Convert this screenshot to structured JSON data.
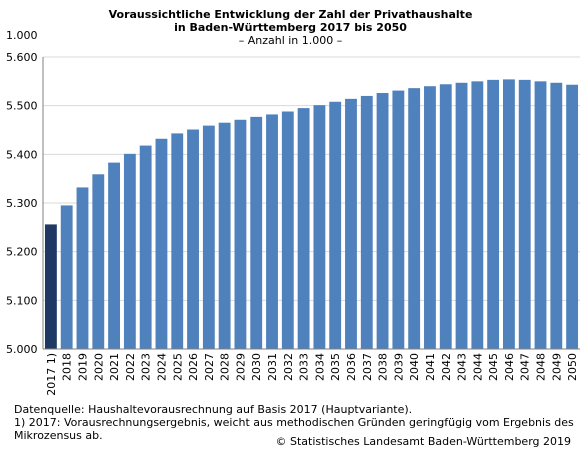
{
  "chart_data": {
    "type": "bar",
    "title": "Voraussichtliche Entwicklung der Zahl der Privathaushalte",
    "title_line2": "in Baden-Württemberg 2017 bis 2050",
    "subtitle": "– Anzahl in 1.000 –",
    "unit_label": "1.000",
    "xlabel": "",
    "ylabel": "",
    "ylim": [
      5000,
      5600
    ],
    "yticks": [
      5000,
      5100,
      5200,
      5300,
      5400,
      5500,
      5600
    ],
    "ytick_labels": [
      "5.000",
      "5.100",
      "5.200",
      "5.300",
      "5.400",
      "5.500",
      "5.600"
    ],
    "grid": true,
    "categories": [
      "2017 1)",
      "2018",
      "2019",
      "2020",
      "2021",
      "2022",
      "2023",
      "2024",
      "2025",
      "2026",
      "2027",
      "2028",
      "2029",
      "2030",
      "2031",
      "2032",
      "2033",
      "2034",
      "2035",
      "2036",
      "2037",
      "2038",
      "2039",
      "2040",
      "2041",
      "2042",
      "2043",
      "2044",
      "2045",
      "2046",
      "2047",
      "2048",
      "2049",
      "2050"
    ],
    "values": [
      5256,
      5295,
      5332,
      5359,
      5383,
      5401,
      5418,
      5432,
      5443,
      5451,
      5459,
      5465,
      5471,
      5477,
      5482,
      5488,
      5495,
      5501,
      5508,
      5514,
      5520,
      5526,
      5531,
      5536,
      5540,
      5544,
      5547,
      5550,
      5553,
      5554,
      5553,
      5550,
      5547,
      5543
    ],
    "colors": {
      "highlight": "#1f3864",
      "bar": "#4f81bd",
      "grid": "#d9d9d9",
      "axis": "#808080"
    }
  },
  "footer": {
    "source": "Datenquelle: Haushaltevorausrechnung auf Basis 2017 (Hauptvariante).",
    "note_line1": "1) 2017: Vorausrechnungsergebnis, weicht aus methodischen Gründen geringfügig vom Ergebnis des",
    "note_line2": "Mikrozensus ab.",
    "copyright": "© Statistisches Landesamt Baden-Württemberg 2019"
  }
}
